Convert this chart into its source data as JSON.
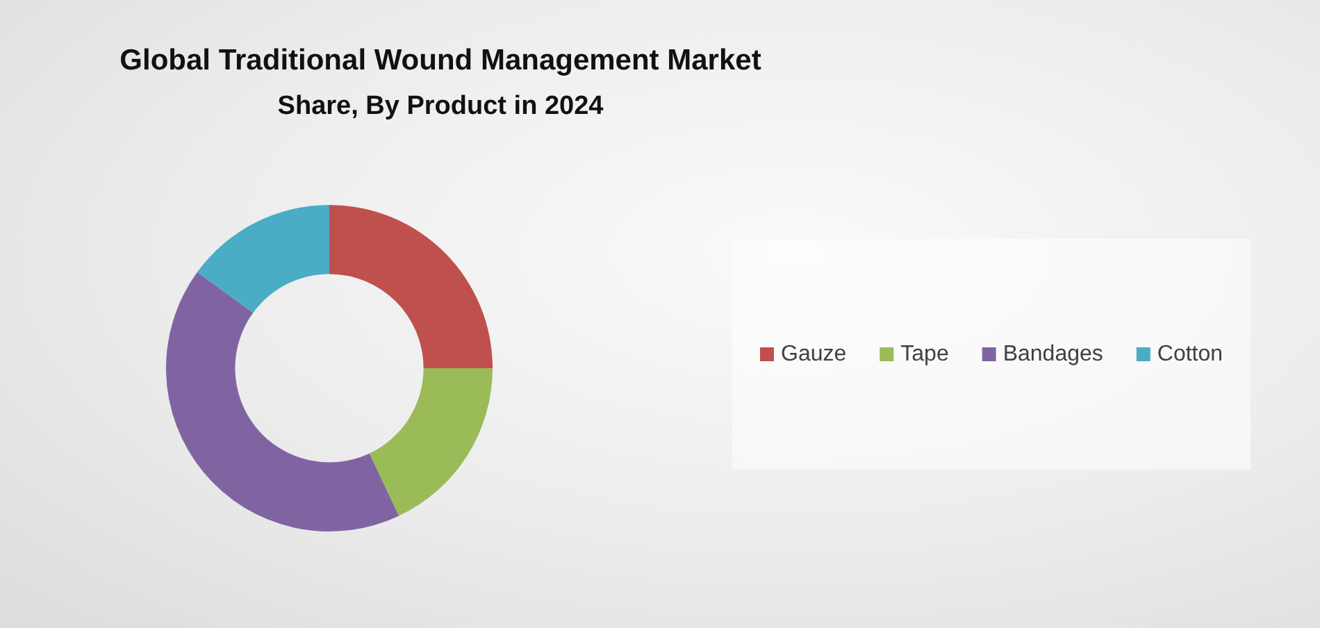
{
  "chart_data": {
    "type": "donut",
    "title": "Global Traditional Wound Management Market",
    "subtitle": "Share, By Product in 2024",
    "categories": [
      "Gauze",
      "Tape",
      "Bandages",
      "Cotton"
    ],
    "values": [
      25,
      18,
      42,
      15
    ],
    "colors": [
      "#c0504d",
      "#9bbb59",
      "#8064a2",
      "#4bacc6"
    ],
    "legend": "right"
  }
}
